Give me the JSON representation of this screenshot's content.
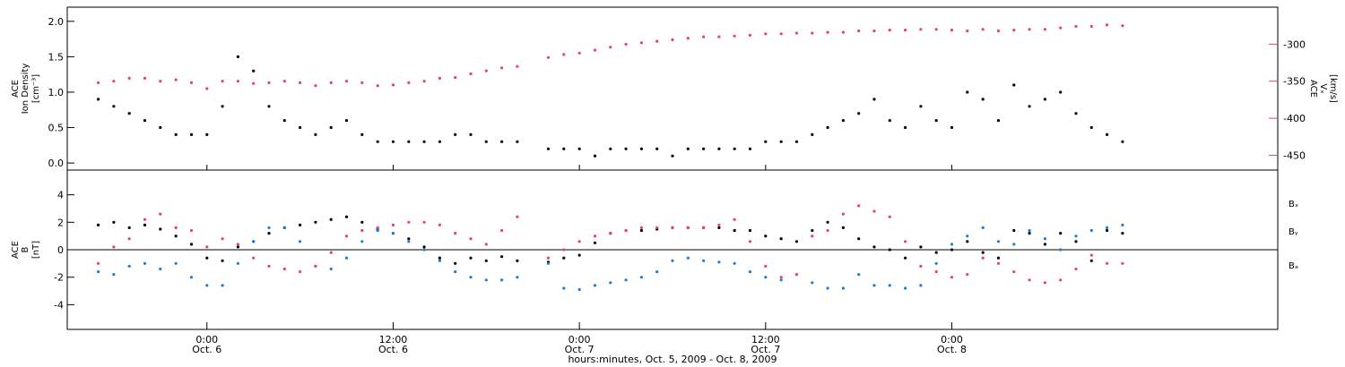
{
  "chart_data": [
    {
      "type": "scatter",
      "panel": "density-speed",
      "ylabel_left": [
        "ACE",
        "Ion Density",
        "[cm⁻³]"
      ],
      "ylabel_right": [
        "ACE",
        "Vₓ",
        "[km/s]"
      ],
      "left_ylim": [
        -0.1,
        2.2
      ],
      "left_ticks": [
        "0.0",
        "0.5",
        "1.0",
        "1.5",
        "2.0"
      ],
      "right_ylim": [
        -470,
        -250
      ],
      "right_ticks": [
        "-300",
        "-350",
        "-400",
        "-450"
      ],
      "series": [
        {
          "name": "Ion Density",
          "color": "#000000",
          "axis": "left",
          "x": [
            -7,
            -6,
            -5,
            -4,
            -3,
            -2,
            -1,
            0,
            1,
            2,
            3,
            4,
            5,
            6,
            7,
            8,
            9,
            10,
            11,
            12,
            13,
            14,
            15,
            16,
            17,
            18,
            19,
            20,
            22,
            23,
            24,
            25,
            26,
            27,
            28,
            29,
            30,
            31,
            32,
            33,
            34,
            35,
            36,
            37,
            38,
            39,
            40,
            41,
            42,
            43,
            44,
            45,
            46,
            47,
            48,
            49,
            50,
            51,
            52,
            53,
            54,
            55,
            56,
            57,
            58,
            59
          ],
          "y": [
            0.9,
            0.8,
            0.7,
            0.6,
            0.5,
            0.4,
            0.4,
            0.4,
            0.8,
            1.5,
            1.3,
            0.8,
            0.6,
            0.5,
            0.4,
            0.5,
            0.6,
            0.4,
            0.3,
            0.3,
            0.3,
            0.3,
            0.3,
            0.4,
            0.4,
            0.3,
            0.3,
            0.3,
            0.2,
            0.2,
            0.2,
            0.1,
            0.2,
            0.2,
            0.2,
            0.2,
            0.1,
            0.2,
            0.2,
            0.2,
            0.2,
            0.2,
            0.3,
            0.3,
            0.3,
            0.4,
            0.5,
            0.6,
            0.7,
            0.9,
            0.6,
            0.5,
            0.8,
            0.6,
            0.5,
            1.0,
            0.9,
            0.6,
            1.1,
            0.8,
            0.9,
            1.0,
            0.7,
            0.5,
            0.4,
            0.3
          ]
        },
        {
          "name": "Vx",
          "color": "#e8436b",
          "axis": "right",
          "x": [
            -7,
            -6,
            -5,
            -4,
            -3,
            -2,
            -1,
            0,
            1,
            2,
            3,
            4,
            5,
            6,
            7,
            8,
            9,
            10,
            11,
            12,
            13,
            14,
            15,
            16,
            17,
            18,
            19,
            20,
            22,
            23,
            24,
            25,
            26,
            27,
            28,
            29,
            30,
            31,
            32,
            33,
            34,
            35,
            36,
            37,
            38,
            39,
            40,
            41,
            42,
            43,
            44,
            45,
            46,
            47,
            48,
            49,
            50,
            51,
            52,
            53,
            54,
            55,
            56,
            57,
            58,
            59
          ],
          "y": [
            -352,
            -350,
            -346,
            -346,
            -350,
            -348,
            -352,
            -360,
            -350,
            -350,
            -353,
            -352,
            -350,
            -352,
            -356,
            -352,
            -350,
            -352,
            -356,
            -355,
            -352,
            -350,
            -346,
            -345,
            -340,
            -336,
            -332,
            -330,
            -318,
            -314,
            -312,
            -308,
            -304,
            -300,
            -298,
            -296,
            -294,
            -292,
            -290,
            -290,
            -289,
            -288,
            -286,
            -286,
            -285,
            -285,
            -284,
            -284,
            -282,
            -282,
            -281,
            -281,
            -280,
            -280,
            -281,
            -282,
            -280,
            -282,
            -281,
            -280,
            -280,
            -278,
            -276,
            -276,
            -274,
            -275
          ]
        }
      ]
    },
    {
      "type": "scatter",
      "panel": "magnetic-field",
      "ylabel_left": [
        "ACE",
        "B",
        "[nT]"
      ],
      "left_ylim": [
        -5.8,
        5.8
      ],
      "left_ticks": [
        "4",
        "2",
        "0",
        "-2",
        "-4"
      ],
      "legend": [
        "Bₓ",
        "Bᵧ",
        "Bₔ"
      ],
      "series": [
        {
          "name": "Bₓ",
          "color": "#000000",
          "x": [
            -7,
            -6,
            -5,
            -4,
            -3,
            -2,
            -1,
            0,
            1,
            2,
            3,
            4,
            5,
            6,
            7,
            8,
            9,
            10,
            11,
            12,
            13,
            14,
            15,
            16,
            17,
            18,
            19,
            20,
            22,
            23,
            24,
            25,
            26,
            27,
            28,
            29,
            30,
            31,
            32,
            33,
            34,
            35,
            36,
            37,
            38,
            39,
            40,
            41,
            42,
            43,
            44,
            45,
            46,
            47,
            48,
            49,
            50,
            51,
            52,
            53,
            54,
            55,
            56,
            57,
            58,
            59
          ],
          "y": [
            1.8,
            2.0,
            1.6,
            1.8,
            1.5,
            1.0,
            0.4,
            -0.6,
            -0.8,
            0.2,
            0.6,
            1.2,
            1.6,
            1.8,
            2.0,
            2.2,
            2.4,
            2.0,
            1.5,
            1.2,
            0.8,
            0.2,
            -0.6,
            -1.0,
            -0.6,
            -0.8,
            -0.5,
            -0.8,
            -0.9,
            -0.6,
            -0.4,
            0.5,
            1.2,
            1.4,
            1.4,
            1.5,
            1.6,
            1.6,
            1.6,
            1.6,
            1.4,
            1.4,
            1.0,
            0.8,
            0.6,
            1.4,
            2.0,
            1.6,
            0.8,
            0.2,
            0.0,
            -0.6,
            0.2,
            -0.2,
            0.0,
            0.6,
            -0.2,
            -0.6,
            1.4,
            1.2,
            0.4,
            1.2,
            0.6,
            -0.8,
            1.4,
            1.2
          ]
        },
        {
          "name": "Bᵧ",
          "color": "#1a7fd6",
          "x": [
            -7,
            -6,
            -5,
            -4,
            -3,
            -2,
            -1,
            0,
            1,
            2,
            3,
            4,
            5,
            6,
            7,
            8,
            9,
            10,
            11,
            12,
            13,
            14,
            15,
            16,
            17,
            18,
            19,
            20,
            22,
            23,
            24,
            25,
            26,
            27,
            28,
            29,
            30,
            31,
            32,
            33,
            34,
            35,
            36,
            37,
            38,
            39,
            40,
            41,
            42,
            43,
            44,
            45,
            46,
            47,
            48,
            49,
            50,
            51,
            52,
            53,
            54,
            55,
            56,
            57,
            58,
            59
          ],
          "y": [
            -1.6,
            -1.8,
            -1.2,
            -1.0,
            -1.4,
            -1.0,
            -2.0,
            -2.6,
            -2.6,
            -1.0,
            0.6,
            1.6,
            1.6,
            0.6,
            -1.2,
            -1.4,
            -0.6,
            0.6,
            1.4,
            1.2,
            0.6,
            0.0,
            -0.8,
            -1.6,
            -2.0,
            -2.2,
            -2.2,
            -2.0,
            -1.0,
            -2.8,
            -2.9,
            -2.6,
            -2.4,
            -2.2,
            -2.0,
            -1.6,
            -0.8,
            -0.6,
            -0.8,
            -0.9,
            -1.0,
            -1.6,
            -2.0,
            -2.2,
            -1.8,
            -2.4,
            -2.8,
            -2.8,
            -1.8,
            -2.6,
            -2.6,
            -2.8,
            -2.6,
            -1.0,
            0.4,
            1.0,
            1.6,
            0.6,
            0.4,
            1.4,
            0.8,
            0.0,
            1.0,
            1.4,
            1.6,
            1.8
          ]
        },
        {
          "name": "Bₔ",
          "color": "#e8436b",
          "x": [
            -7,
            -6,
            -5,
            -4,
            -3,
            -2,
            -1,
            0,
            1,
            2,
            3,
            4,
            5,
            6,
            7,
            8,
            9,
            10,
            11,
            12,
            13,
            14,
            15,
            16,
            17,
            18,
            19,
            20,
            22,
            23,
            24,
            25,
            26,
            27,
            28,
            29,
            30,
            31,
            32,
            33,
            34,
            35,
            36,
            37,
            38,
            39,
            40,
            41,
            42,
            43,
            44,
            45,
            46,
            47,
            48,
            49,
            50,
            51,
            52,
            53,
            54,
            55,
            56,
            57,
            58,
            59
          ],
          "y": [
            -1.0,
            0.2,
            0.8,
            2.2,
            2.6,
            1.6,
            1.4,
            0.2,
            0.8,
            0.4,
            -0.6,
            -1.2,
            -1.4,
            -1.6,
            -1.2,
            -0.2,
            1.0,
            1.4,
            1.6,
            1.8,
            2.0,
            2.0,
            1.8,
            1.2,
            0.8,
            0.4,
            1.4,
            2.4,
            -0.6,
            0.0,
            0.6,
            1.0,
            1.2,
            1.4,
            1.6,
            1.6,
            1.6,
            1.6,
            1.6,
            1.8,
            2.2,
            0.6,
            -1.2,
            -2.0,
            -1.8,
            1.0,
            1.4,
            2.6,
            3.2,
            2.8,
            2.4,
            0.6,
            -1.2,
            -1.6,
            -2.0,
            -1.8,
            -0.6,
            -1.0,
            -1.6,
            -2.2,
            -2.4,
            -2.2,
            -1.4,
            -0.4,
            -1.0,
            -1.0
          ]
        }
      ]
    }
  ],
  "time_axis": {
    "xlim": [
      -9,
      69
    ],
    "ticks": [
      {
        "x": 0,
        "time": "0:00",
        "date": "Oct. 6"
      },
      {
        "x": 12,
        "time": "12:00",
        "date": "Oct. 6"
      },
      {
        "x": 24,
        "time": "0:00",
        "date": "Oct. 7"
      },
      {
        "x": 36,
        "time": "12:00",
        "date": "Oct. 7"
      },
      {
        "x": 48,
        "time": "0:00",
        "date": "Oct. 8"
      }
    ],
    "xlabel": "hours:minutes, Oct. 5, 2009 - Oct. 8, 2009"
  },
  "colors": {
    "black": "#000000",
    "pink": "#e8436b",
    "blue": "#1a7fd6"
  }
}
